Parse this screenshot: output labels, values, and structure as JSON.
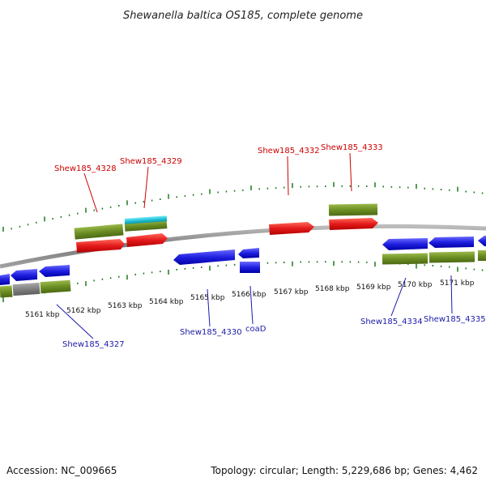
{
  "title": "Shewanella baltica OS185, complete genome",
  "footer": {
    "accession": "Accession: NC_009665",
    "topology": "Topology: circular; Length: 5,229,686 bp; Genes: 4,462"
  },
  "ruler_ticks": [
    "5161 kbp",
    "5162 kbp",
    "5163 kbp",
    "5164 kbp",
    "5165 kbp",
    "5166 kbp",
    "5167 kbp",
    "5168 kbp",
    "5169 kbp",
    "5170 kbp",
    "5171 kbp"
  ],
  "gene_labels_forward": [
    "Shew185_4328",
    "Shew185_4329",
    "Shew185_4332",
    "Shew185_4333"
  ],
  "gene_labels_reverse": [
    "Shew185_4327",
    "Shew185_4330",
    "coaD",
    "Shew185_4334",
    "Shew185_4335"
  ],
  "colors": {
    "forward_label": "#cc0000",
    "reverse_label": "#1a1aaa",
    "forward_gene": "#e41a1c",
    "reverse_gene": "#1f1fe0",
    "coding_region": "#6b8e23",
    "trna": "#22c4d8",
    "pseudo": "#808080",
    "backbone": "#888888",
    "tick": "#1a7a1a"
  }
}
